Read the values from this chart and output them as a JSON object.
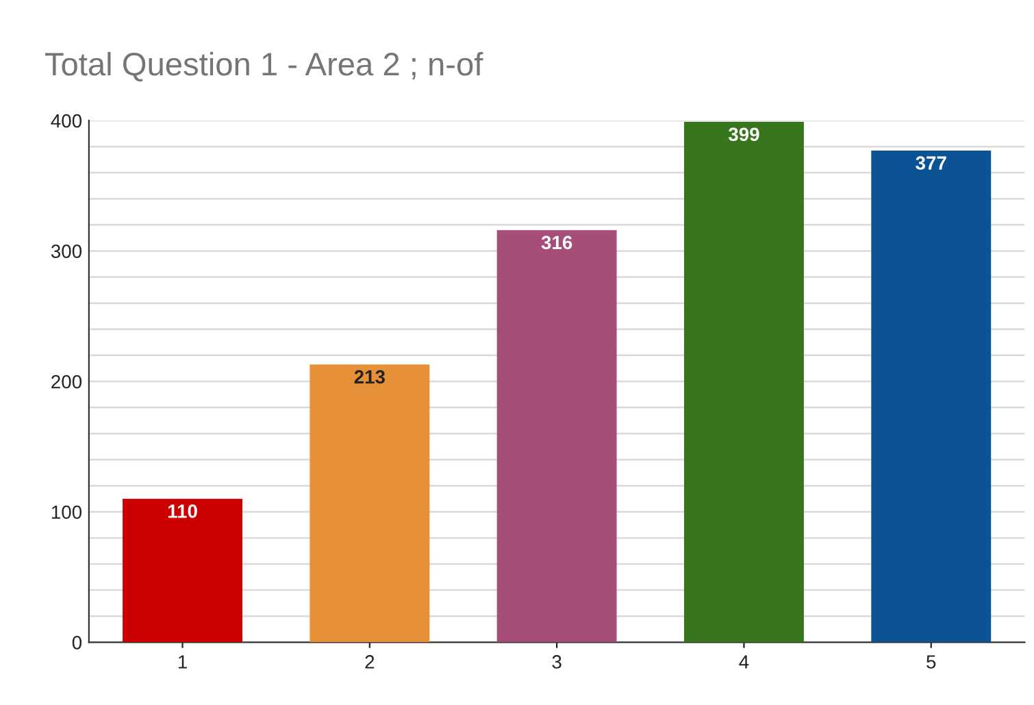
{
  "chart_data": {
    "type": "bar",
    "title": "Total Question 1 - Area 2 ; n-of",
    "categories": [
      "1",
      "2",
      "3",
      "4",
      "5"
    ],
    "values": [
      110,
      213,
      316,
      399,
      377
    ],
    "colors": [
      "#cc0000",
      "#e69138",
      "#a64d79",
      "#38761d",
      "#0b5394"
    ],
    "ylim": [
      0,
      400
    ],
    "yticks": [
      0,
      {
        "value": 20,
        "label": null
      },
      {
        "value": 40,
        "label": null
      },
      {
        "value": 60,
        "label": null
      },
      {
        "value": 80,
        "label": null
      },
      100,
      {
        "value": 120,
        "label": null
      },
      {
        "value": 140,
        "label": null
      },
      {
        "value": 160,
        "label": null
      },
      {
        "value": 180,
        "label": null
      },
      200,
      {
        "value": 220,
        "label": null
      },
      {
        "value": 240,
        "label": null
      },
      {
        "value": 260,
        "label": null
      },
      {
        "value": 280,
        "label": null
      },
      300,
      {
        "value": 320,
        "label": null
      },
      {
        "value": 340,
        "label": null
      },
      {
        "value": 360,
        "label": null
      },
      {
        "value": 380,
        "label": null
      },
      400
    ],
    "grid": "y",
    "data_labels": true
  }
}
